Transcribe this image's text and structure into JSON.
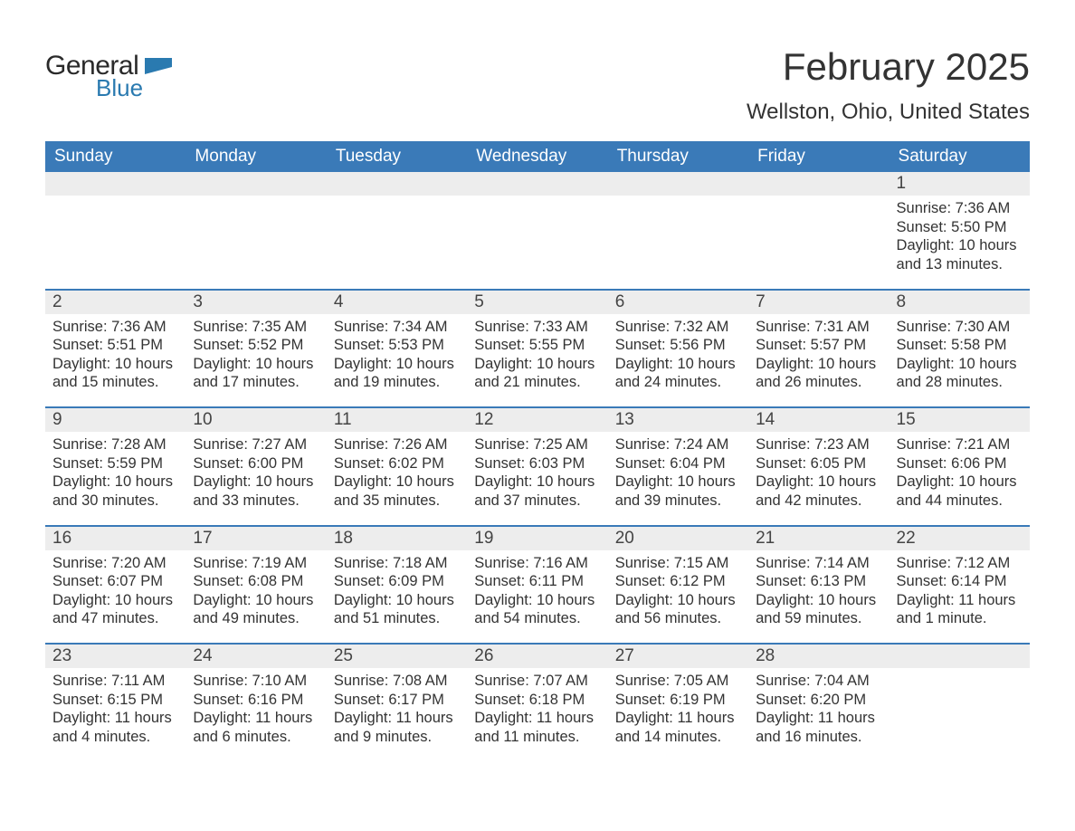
{
  "logo": {
    "general": "General",
    "blue": "Blue",
    "flag_color": "#2a7ab0"
  },
  "header": {
    "title": "February 2025",
    "location": "Wellston, Ohio, United States"
  },
  "colors": {
    "header_bg": "#3a7ab8",
    "header_text": "#ffffff",
    "daynum_bg": "#ededed",
    "body_text": "#333333",
    "week_sep": "#3a7ab8"
  },
  "fonts": {
    "title_size": 42,
    "location_size": 24,
    "day_header_size": 19,
    "daynum_size": 19,
    "body_size": 16.5
  },
  "day_headers": [
    "Sunday",
    "Monday",
    "Tuesday",
    "Wednesday",
    "Thursday",
    "Friday",
    "Saturday"
  ],
  "weeks": [
    [
      {
        "num": "",
        "sunrise": "",
        "sunset": "",
        "daylight": ""
      },
      {
        "num": "",
        "sunrise": "",
        "sunset": "",
        "daylight": ""
      },
      {
        "num": "",
        "sunrise": "",
        "sunset": "",
        "daylight": ""
      },
      {
        "num": "",
        "sunrise": "",
        "sunset": "",
        "daylight": ""
      },
      {
        "num": "",
        "sunrise": "",
        "sunset": "",
        "daylight": ""
      },
      {
        "num": "",
        "sunrise": "",
        "sunset": "",
        "daylight": ""
      },
      {
        "num": "1",
        "sunrise": "Sunrise: 7:36 AM",
        "sunset": "Sunset: 5:50 PM",
        "daylight": "Daylight: 10 hours and 13 minutes."
      }
    ],
    [
      {
        "num": "2",
        "sunrise": "Sunrise: 7:36 AM",
        "sunset": "Sunset: 5:51 PM",
        "daylight": "Daylight: 10 hours and 15 minutes."
      },
      {
        "num": "3",
        "sunrise": "Sunrise: 7:35 AM",
        "sunset": "Sunset: 5:52 PM",
        "daylight": "Daylight: 10 hours and 17 minutes."
      },
      {
        "num": "4",
        "sunrise": "Sunrise: 7:34 AM",
        "sunset": "Sunset: 5:53 PM",
        "daylight": "Daylight: 10 hours and 19 minutes."
      },
      {
        "num": "5",
        "sunrise": "Sunrise: 7:33 AM",
        "sunset": "Sunset: 5:55 PM",
        "daylight": "Daylight: 10 hours and 21 minutes."
      },
      {
        "num": "6",
        "sunrise": "Sunrise: 7:32 AM",
        "sunset": "Sunset: 5:56 PM",
        "daylight": "Daylight: 10 hours and 24 minutes."
      },
      {
        "num": "7",
        "sunrise": "Sunrise: 7:31 AM",
        "sunset": "Sunset: 5:57 PM",
        "daylight": "Daylight: 10 hours and 26 minutes."
      },
      {
        "num": "8",
        "sunrise": "Sunrise: 7:30 AM",
        "sunset": "Sunset: 5:58 PM",
        "daylight": "Daylight: 10 hours and 28 minutes."
      }
    ],
    [
      {
        "num": "9",
        "sunrise": "Sunrise: 7:28 AM",
        "sunset": "Sunset: 5:59 PM",
        "daylight": "Daylight: 10 hours and 30 minutes."
      },
      {
        "num": "10",
        "sunrise": "Sunrise: 7:27 AM",
        "sunset": "Sunset: 6:00 PM",
        "daylight": "Daylight: 10 hours and 33 minutes."
      },
      {
        "num": "11",
        "sunrise": "Sunrise: 7:26 AM",
        "sunset": "Sunset: 6:02 PM",
        "daylight": "Daylight: 10 hours and 35 minutes."
      },
      {
        "num": "12",
        "sunrise": "Sunrise: 7:25 AM",
        "sunset": "Sunset: 6:03 PM",
        "daylight": "Daylight: 10 hours and 37 minutes."
      },
      {
        "num": "13",
        "sunrise": "Sunrise: 7:24 AM",
        "sunset": "Sunset: 6:04 PM",
        "daylight": "Daylight: 10 hours and 39 minutes."
      },
      {
        "num": "14",
        "sunrise": "Sunrise: 7:23 AM",
        "sunset": "Sunset: 6:05 PM",
        "daylight": "Daylight: 10 hours and 42 minutes."
      },
      {
        "num": "15",
        "sunrise": "Sunrise: 7:21 AM",
        "sunset": "Sunset: 6:06 PM",
        "daylight": "Daylight: 10 hours and 44 minutes."
      }
    ],
    [
      {
        "num": "16",
        "sunrise": "Sunrise: 7:20 AM",
        "sunset": "Sunset: 6:07 PM",
        "daylight": "Daylight: 10 hours and 47 minutes."
      },
      {
        "num": "17",
        "sunrise": "Sunrise: 7:19 AM",
        "sunset": "Sunset: 6:08 PM",
        "daylight": "Daylight: 10 hours and 49 minutes."
      },
      {
        "num": "18",
        "sunrise": "Sunrise: 7:18 AM",
        "sunset": "Sunset: 6:09 PM",
        "daylight": "Daylight: 10 hours and 51 minutes."
      },
      {
        "num": "19",
        "sunrise": "Sunrise: 7:16 AM",
        "sunset": "Sunset: 6:11 PM",
        "daylight": "Daylight: 10 hours and 54 minutes."
      },
      {
        "num": "20",
        "sunrise": "Sunrise: 7:15 AM",
        "sunset": "Sunset: 6:12 PM",
        "daylight": "Daylight: 10 hours and 56 minutes."
      },
      {
        "num": "21",
        "sunrise": "Sunrise: 7:14 AM",
        "sunset": "Sunset: 6:13 PM",
        "daylight": "Daylight: 10 hours and 59 minutes."
      },
      {
        "num": "22",
        "sunrise": "Sunrise: 7:12 AM",
        "sunset": "Sunset: 6:14 PM",
        "daylight": "Daylight: 11 hours and 1 minute."
      }
    ],
    [
      {
        "num": "23",
        "sunrise": "Sunrise: 7:11 AM",
        "sunset": "Sunset: 6:15 PM",
        "daylight": "Daylight: 11 hours and 4 minutes."
      },
      {
        "num": "24",
        "sunrise": "Sunrise: 7:10 AM",
        "sunset": "Sunset: 6:16 PM",
        "daylight": "Daylight: 11 hours and 6 minutes."
      },
      {
        "num": "25",
        "sunrise": "Sunrise: 7:08 AM",
        "sunset": "Sunset: 6:17 PM",
        "daylight": "Daylight: 11 hours and 9 minutes."
      },
      {
        "num": "26",
        "sunrise": "Sunrise: 7:07 AM",
        "sunset": "Sunset: 6:18 PM",
        "daylight": "Daylight: 11 hours and 11 minutes."
      },
      {
        "num": "27",
        "sunrise": "Sunrise: 7:05 AM",
        "sunset": "Sunset: 6:19 PM",
        "daylight": "Daylight: 11 hours and 14 minutes."
      },
      {
        "num": "28",
        "sunrise": "Sunrise: 7:04 AM",
        "sunset": "Sunset: 6:20 PM",
        "daylight": "Daylight: 11 hours and 16 minutes."
      },
      {
        "num": "",
        "sunrise": "",
        "sunset": "",
        "daylight": ""
      }
    ]
  ]
}
